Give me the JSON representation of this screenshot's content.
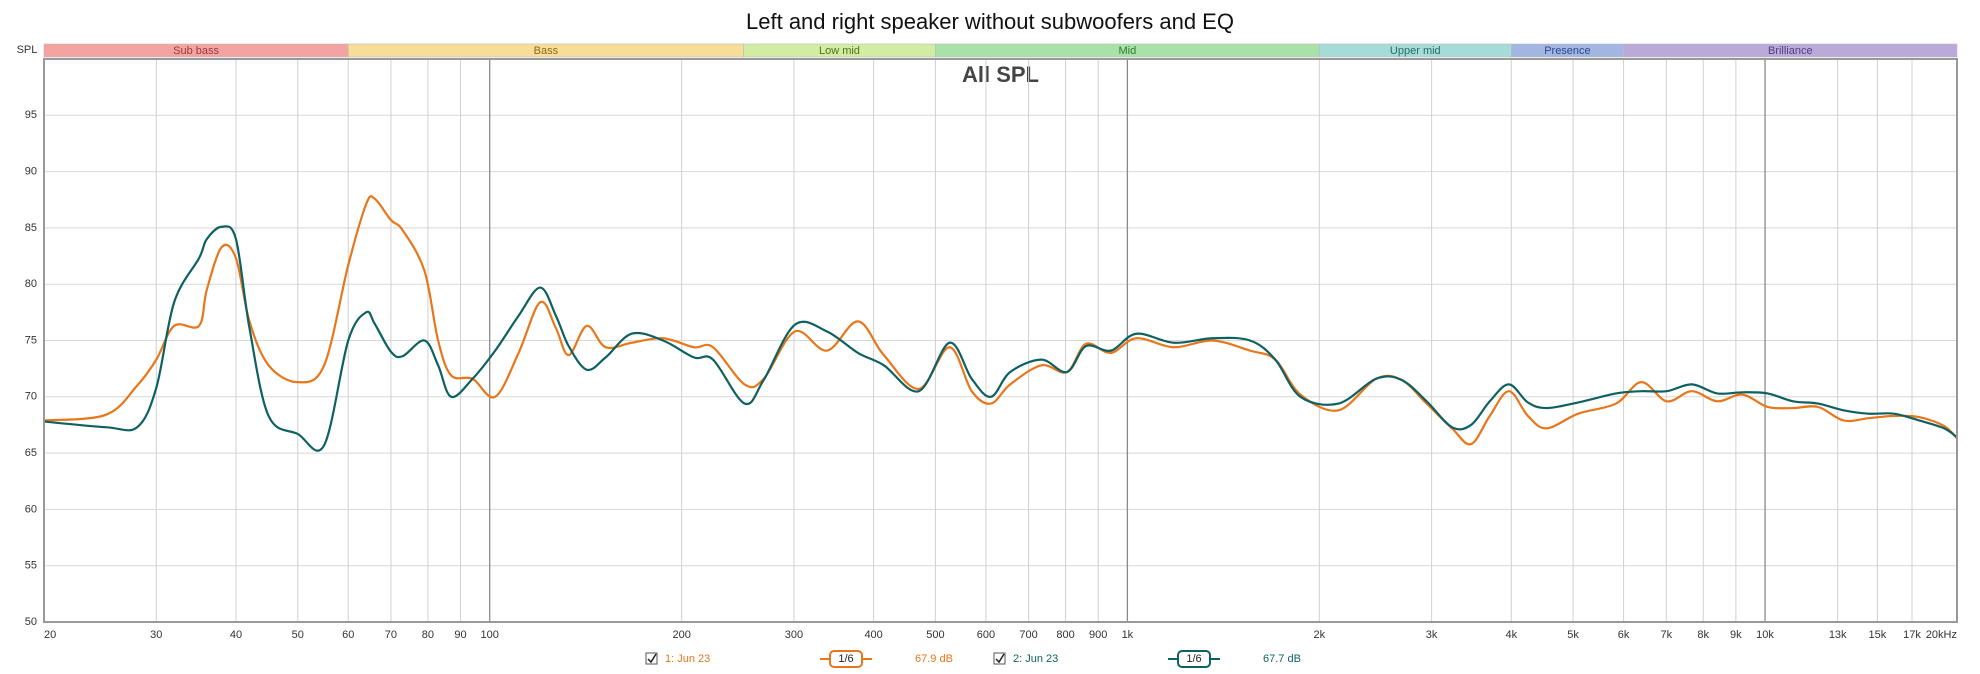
{
  "chart_data": {
    "type": "line",
    "title": "Left and right speaker without subwoofers and EQ",
    "subtitle": "All SPL",
    "y_label": "SPL",
    "log_x": true,
    "grid": true,
    "xlim": [
      20,
      20000
    ],
    "ylim": [
      50,
      100
    ],
    "xticks": [
      20,
      30,
      40,
      50,
      60,
      70,
      80,
      90,
      100,
      200,
      300,
      400,
      500,
      600,
      700,
      800,
      900,
      {
        "value": 1000,
        "label": "1k"
      },
      {
        "value": 2000,
        "label": "2k"
      },
      {
        "value": 3000,
        "label": "3k"
      },
      {
        "value": 4000,
        "label": "4k"
      },
      {
        "value": 5000,
        "label": "5k"
      },
      {
        "value": 6000,
        "label": "6k"
      },
      {
        "value": 7000,
        "label": "7k"
      },
      {
        "value": 8000,
        "label": "8k"
      },
      {
        "value": 9000,
        "label": "9k"
      },
      {
        "value": 10000,
        "label": "10k"
      },
      {
        "value": 13000,
        "label": "13k"
      },
      {
        "value": 15000,
        "label": "15k"
      },
      {
        "value": 17000,
        "label": "17k"
      },
      {
        "value": 20000,
        "label": "20kHz"
      }
    ],
    "yticks": [
      50,
      55,
      60,
      65,
      70,
      75,
      80,
      85,
      90,
      95
    ],
    "bands": [
      {
        "name": "Sub bass",
        "from": 20,
        "to": 60,
        "color": "#f4a3a3",
        "text_color": "#9a3b3b"
      },
      {
        "name": "Bass",
        "from": 60,
        "to": 250,
        "color": "#f8dd98",
        "text_color": "#8a6a1a"
      },
      {
        "name": "Low mid",
        "from": 250,
        "to": 500,
        "color": "#d2eca4",
        "text_color": "#4f7420"
      },
      {
        "name": "Mid",
        "from": 500,
        "to": 2000,
        "color": "#a9e2a9",
        "text_color": "#2f7a2f"
      },
      {
        "name": "Upper mid",
        "from": 2000,
        "to": 4000,
        "color": "#a6dcd8",
        "text_color": "#276e6a"
      },
      {
        "name": "Presence",
        "from": 4000,
        "to": 6000,
        "color": "#a3b6e2",
        "text_color": "#2c4a8a"
      },
      {
        "name": "Brilliance",
        "from": 6000,
        "to": 20000,
        "color": "#bba9d9",
        "text_color": "#55407e"
      }
    ],
    "x": [
      20,
      25,
      28,
      30,
      32,
      35,
      36,
      38,
      40,
      42,
      45,
      50,
      55,
      60,
      64,
      66,
      70,
      73,
      79,
      83,
      87,
      94,
      102,
      111,
      120,
      127,
      133,
      142,
      152,
      167,
      187,
      209,
      224,
      251,
      269,
      301,
      338,
      378,
      415,
      471,
      526,
      570,
      611,
      655,
      733,
      804,
      861,
      942,
      1033,
      1183,
      1358,
      1557,
      1706,
      1868,
      2143,
      2455,
      2691,
      2946,
      3229,
      3459,
      3701,
      3965,
      4247,
      4543,
      5093,
      5838,
      6398,
      7012,
      7677,
      8414,
      9213,
      10093,
      11062,
      12111,
      13275,
      14532,
      15922,
      17450,
      19099,
      20000
    ],
    "series": [
      {
        "name": "1: Jun 23",
        "color": "#e8761a",
        "smoothing": "1/6",
        "level_label": "67.9 dB",
        "values": [
          67.9,
          68.4,
          71,
          73.3,
          76.3,
          76.3,
          79.5,
          83.3,
          82.3,
          76.7,
          72.8,
          71.3,
          72.8,
          81.7,
          87.1,
          87.6,
          85.7,
          84.8,
          81.2,
          75,
          71.9,
          71.6,
          70,
          73.9,
          78.4,
          76.1,
          73.7,
          76.3,
          74.4,
          74.8,
          75.2,
          74.4,
          74.4,
          71.1,
          71.6,
          75.8,
          74.1,
          76.7,
          73.7,
          70.7,
          74.4,
          70.5,
          69.4,
          71.1,
          72.8,
          72.2,
          74.7,
          73.9,
          75.2,
          74.4,
          75,
          74.1,
          73.3,
          70.2,
          68.8,
          71.6,
          71.5,
          69.4,
          67.2,
          65.8,
          68.3,
          70.5,
          68.3,
          67.2,
          68.5,
          69.4,
          71.3,
          69.6,
          70.5,
          69.6,
          70.2,
          69.1,
          69,
          69.1,
          67.9,
          68.1,
          68.3,
          68.2,
          67.4,
          66.3
        ]
      },
      {
        "name": "2: Jun 23",
        "color": "#0f6161",
        "smoothing": "1/6",
        "level_label": "67.7 dB",
        "values": [
          67.8,
          67.3,
          67.3,
          70.8,
          78.4,
          82.3,
          84,
          85.1,
          84,
          76.1,
          68.3,
          66.7,
          65.7,
          75,
          77.5,
          76.5,
          74,
          73.6,
          75,
          72.8,
          70,
          71.6,
          74.1,
          77.2,
          79.7,
          77.2,
          74.5,
          72.4,
          73.5,
          75.6,
          75,
          73.5,
          73.3,
          69.4,
          71.5,
          76.4,
          75.8,
          73.9,
          72.8,
          70.5,
          74.8,
          71.6,
          70,
          72.2,
          73.3,
          72.2,
          74.5,
          74.1,
          75.6,
          74.8,
          75.2,
          75,
          73.3,
          70,
          69.4,
          71.6,
          71.5,
          69.6,
          67.3,
          67.5,
          69.6,
          71.1,
          69.5,
          69,
          69.5,
          70.3,
          70.5,
          70.5,
          71.1,
          70.3,
          70.4,
          70.3,
          69.6,
          69.4,
          68.8,
          68.5,
          68.5,
          67.9,
          67.2,
          66.4
        ]
      }
    ]
  }
}
